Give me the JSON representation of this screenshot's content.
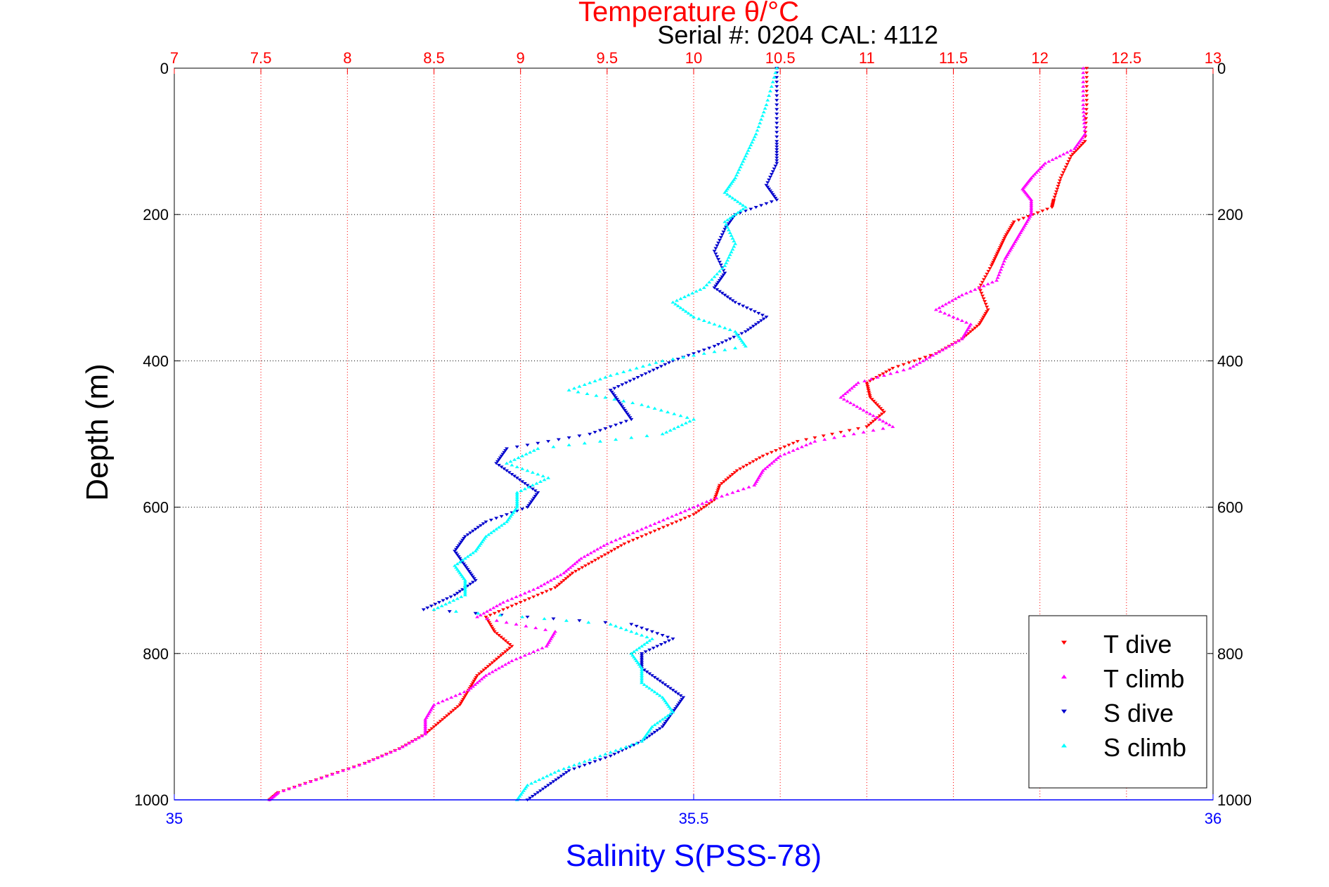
{
  "colors": {
    "temperature_axis": "#ff0000",
    "salinity_axis": "#0000ff",
    "t_dive": "#ff0000",
    "t_climb": "#ff00ff",
    "s_dive": "#0000cc",
    "s_climb": "#00ffff",
    "grid": "#000000",
    "text": "#000000"
  },
  "chart_data": {
    "type": "scatter",
    "title": "Temperature θ/°C",
    "subtitle": "Serial #: 0204  CAL: 4112",
    "ylabel": "Depth (m)",
    "xlabel": "Salinity S(PSS-78)",
    "grid": true,
    "legend_position": "bottom-right",
    "x_axes": {
      "temperature": {
        "position": "top",
        "range": [
          7,
          13
        ],
        "ticks": [
          "7",
          "7.5",
          "8",
          "8.5",
          "9",
          "9.5",
          "10",
          "10.5",
          "11",
          "11.5",
          "12",
          "12.5",
          "13"
        ]
      },
      "salinity": {
        "position": "bottom",
        "range": [
          35,
          36
        ],
        "ticks": [
          "35",
          "35.5",
          "36"
        ]
      }
    },
    "y_axis": {
      "range": [
        0,
        1000
      ],
      "reversed": true,
      "ticks": [
        "0",
        "200",
        "400",
        "600",
        "800",
        "1000"
      ]
    },
    "series": [
      {
        "name": "T dive",
        "axis": "temperature",
        "marker": "triangle-down",
        "points": [
          [
            0,
            12.27
          ],
          [
            50,
            12.27
          ],
          [
            100,
            12.26
          ],
          [
            120,
            12.18
          ],
          [
            150,
            12.12
          ],
          [
            180,
            12.08
          ],
          [
            190,
            12.07
          ],
          [
            210,
            11.85
          ],
          [
            230,
            11.8
          ],
          [
            250,
            11.76
          ],
          [
            270,
            11.72
          ],
          [
            300,
            11.65
          ],
          [
            330,
            11.7
          ],
          [
            350,
            11.65
          ],
          [
            370,
            11.55
          ],
          [
            390,
            11.4
          ],
          [
            410,
            11.15
          ],
          [
            430,
            11.0
          ],
          [
            450,
            11.02
          ],
          [
            470,
            11.1
          ],
          [
            490,
            11.0
          ],
          [
            510,
            10.6
          ],
          [
            530,
            10.4
          ],
          [
            550,
            10.25
          ],
          [
            570,
            10.15
          ],
          [
            590,
            10.12
          ],
          [
            610,
            10.0
          ],
          [
            630,
            9.8
          ],
          [
            650,
            9.6
          ],
          [
            670,
            9.45
          ],
          [
            690,
            9.3
          ],
          [
            710,
            9.2
          ],
          [
            730,
            9.0
          ],
          [
            750,
            8.8
          ],
          [
            770,
            8.85
          ],
          [
            790,
            8.95
          ],
          [
            810,
            8.85
          ],
          [
            830,
            8.75
          ],
          [
            850,
            8.7
          ],
          [
            870,
            8.65
          ],
          [
            890,
            8.55
          ],
          [
            910,
            8.45
          ],
          [
            930,
            8.3
          ],
          [
            950,
            8.1
          ],
          [
            970,
            7.85
          ],
          [
            990,
            7.6
          ],
          [
            1000,
            7.55
          ]
        ]
      },
      {
        "name": "T climb",
        "axis": "temperature",
        "marker": "triangle-up",
        "points": [
          [
            0,
            12.25
          ],
          [
            50,
            12.25
          ],
          [
            90,
            12.26
          ],
          [
            110,
            12.2
          ],
          [
            130,
            12.03
          ],
          [
            150,
            11.95
          ],
          [
            165,
            11.9
          ],
          [
            180,
            11.95
          ],
          [
            200,
            11.95
          ],
          [
            220,
            11.9
          ],
          [
            240,
            11.85
          ],
          [
            260,
            11.8
          ],
          [
            290,
            11.75
          ],
          [
            310,
            11.55
          ],
          [
            330,
            11.4
          ],
          [
            350,
            11.6
          ],
          [
            370,
            11.55
          ],
          [
            390,
            11.4
          ],
          [
            410,
            11.25
          ],
          [
            430,
            10.95
          ],
          [
            450,
            10.85
          ],
          [
            470,
            11.0
          ],
          [
            490,
            11.15
          ],
          [
            510,
            10.7
          ],
          [
            530,
            10.5
          ],
          [
            550,
            10.4
          ],
          [
            570,
            10.35
          ],
          [
            590,
            10.1
          ],
          [
            610,
            9.9
          ],
          [
            630,
            9.7
          ],
          [
            650,
            9.5
          ],
          [
            670,
            9.35
          ],
          [
            690,
            9.25
          ],
          [
            710,
            9.1
          ],
          [
            730,
            8.9
          ],
          [
            750,
            8.75
          ],
          [
            770,
            9.2
          ],
          [
            790,
            9.15
          ],
          [
            810,
            8.95
          ],
          [
            830,
            8.8
          ],
          [
            850,
            8.7
          ],
          [
            870,
            8.5
          ],
          [
            890,
            8.45
          ],
          [
            910,
            8.45
          ],
          [
            930,
            8.3
          ],
          [
            950,
            8.1
          ],
          [
            970,
            7.85
          ],
          [
            990,
            7.6
          ],
          [
            1000,
            7.55
          ]
        ]
      },
      {
        "name": "S dive",
        "axis": "salinity",
        "marker": "triangle-down",
        "points": [
          [
            0,
            35.58
          ],
          [
            50,
            35.58
          ],
          [
            100,
            35.58
          ],
          [
            130,
            35.58
          ],
          [
            160,
            35.57
          ],
          [
            180,
            35.58
          ],
          [
            200,
            35.54
          ],
          [
            220,
            35.53
          ],
          [
            250,
            35.52
          ],
          [
            280,
            35.53
          ],
          [
            300,
            35.52
          ],
          [
            320,
            35.54
          ],
          [
            340,
            35.57
          ],
          [
            360,
            35.55
          ],
          [
            380,
            35.52
          ],
          [
            400,
            35.48
          ],
          [
            420,
            35.45
          ],
          [
            440,
            35.42
          ],
          [
            460,
            35.43
          ],
          [
            480,
            35.44
          ],
          [
            500,
            35.4
          ],
          [
            520,
            35.32
          ],
          [
            540,
            35.31
          ],
          [
            560,
            35.33
          ],
          [
            580,
            35.35
          ],
          [
            600,
            35.34
          ],
          [
            620,
            35.3
          ],
          [
            640,
            35.28
          ],
          [
            660,
            35.27
          ],
          [
            680,
            35.28
          ],
          [
            700,
            35.29
          ],
          [
            720,
            35.27
          ],
          [
            740,
            35.24
          ],
          [
            760,
            35.44
          ],
          [
            780,
            35.48
          ],
          [
            800,
            35.45
          ],
          [
            820,
            35.45
          ],
          [
            840,
            35.47
          ],
          [
            860,
            35.49
          ],
          [
            880,
            35.48
          ],
          [
            900,
            35.47
          ],
          [
            920,
            35.45
          ],
          [
            940,
            35.42
          ],
          [
            960,
            35.38
          ],
          [
            980,
            35.36
          ],
          [
            1000,
            35.34
          ]
        ]
      },
      {
        "name": "S climb",
        "axis": "salinity",
        "marker": "triangle-up",
        "points": [
          [
            0,
            35.58
          ],
          [
            50,
            35.57
          ],
          [
            90,
            35.56
          ],
          [
            120,
            35.55
          ],
          [
            150,
            35.54
          ],
          [
            170,
            35.53
          ],
          [
            190,
            35.55
          ],
          [
            210,
            35.53
          ],
          [
            240,
            35.54
          ],
          [
            270,
            35.53
          ],
          [
            300,
            35.51
          ],
          [
            320,
            35.48
          ],
          [
            340,
            35.5
          ],
          [
            360,
            35.54
          ],
          [
            380,
            35.55
          ],
          [
            400,
            35.47
          ],
          [
            420,
            35.42
          ],
          [
            440,
            35.38
          ],
          [
            460,
            35.45
          ],
          [
            480,
            35.5
          ],
          [
            500,
            35.47
          ],
          [
            520,
            35.35
          ],
          [
            540,
            35.32
          ],
          [
            560,
            35.36
          ],
          [
            580,
            35.33
          ],
          [
            600,
            35.33
          ],
          [
            620,
            35.32
          ],
          [
            640,
            35.3
          ],
          [
            660,
            35.29
          ],
          [
            680,
            35.27
          ],
          [
            700,
            35.28
          ],
          [
            720,
            35.28
          ],
          [
            740,
            35.25
          ],
          [
            760,
            35.42
          ],
          [
            780,
            35.46
          ],
          [
            800,
            35.44
          ],
          [
            820,
            35.45
          ],
          [
            840,
            35.45
          ],
          [
            860,
            35.47
          ],
          [
            880,
            35.48
          ],
          [
            900,
            35.46
          ],
          [
            920,
            35.45
          ],
          [
            940,
            35.41
          ],
          [
            960,
            35.37
          ],
          [
            980,
            35.34
          ],
          [
            1000,
            35.33
          ]
        ]
      }
    ]
  }
}
